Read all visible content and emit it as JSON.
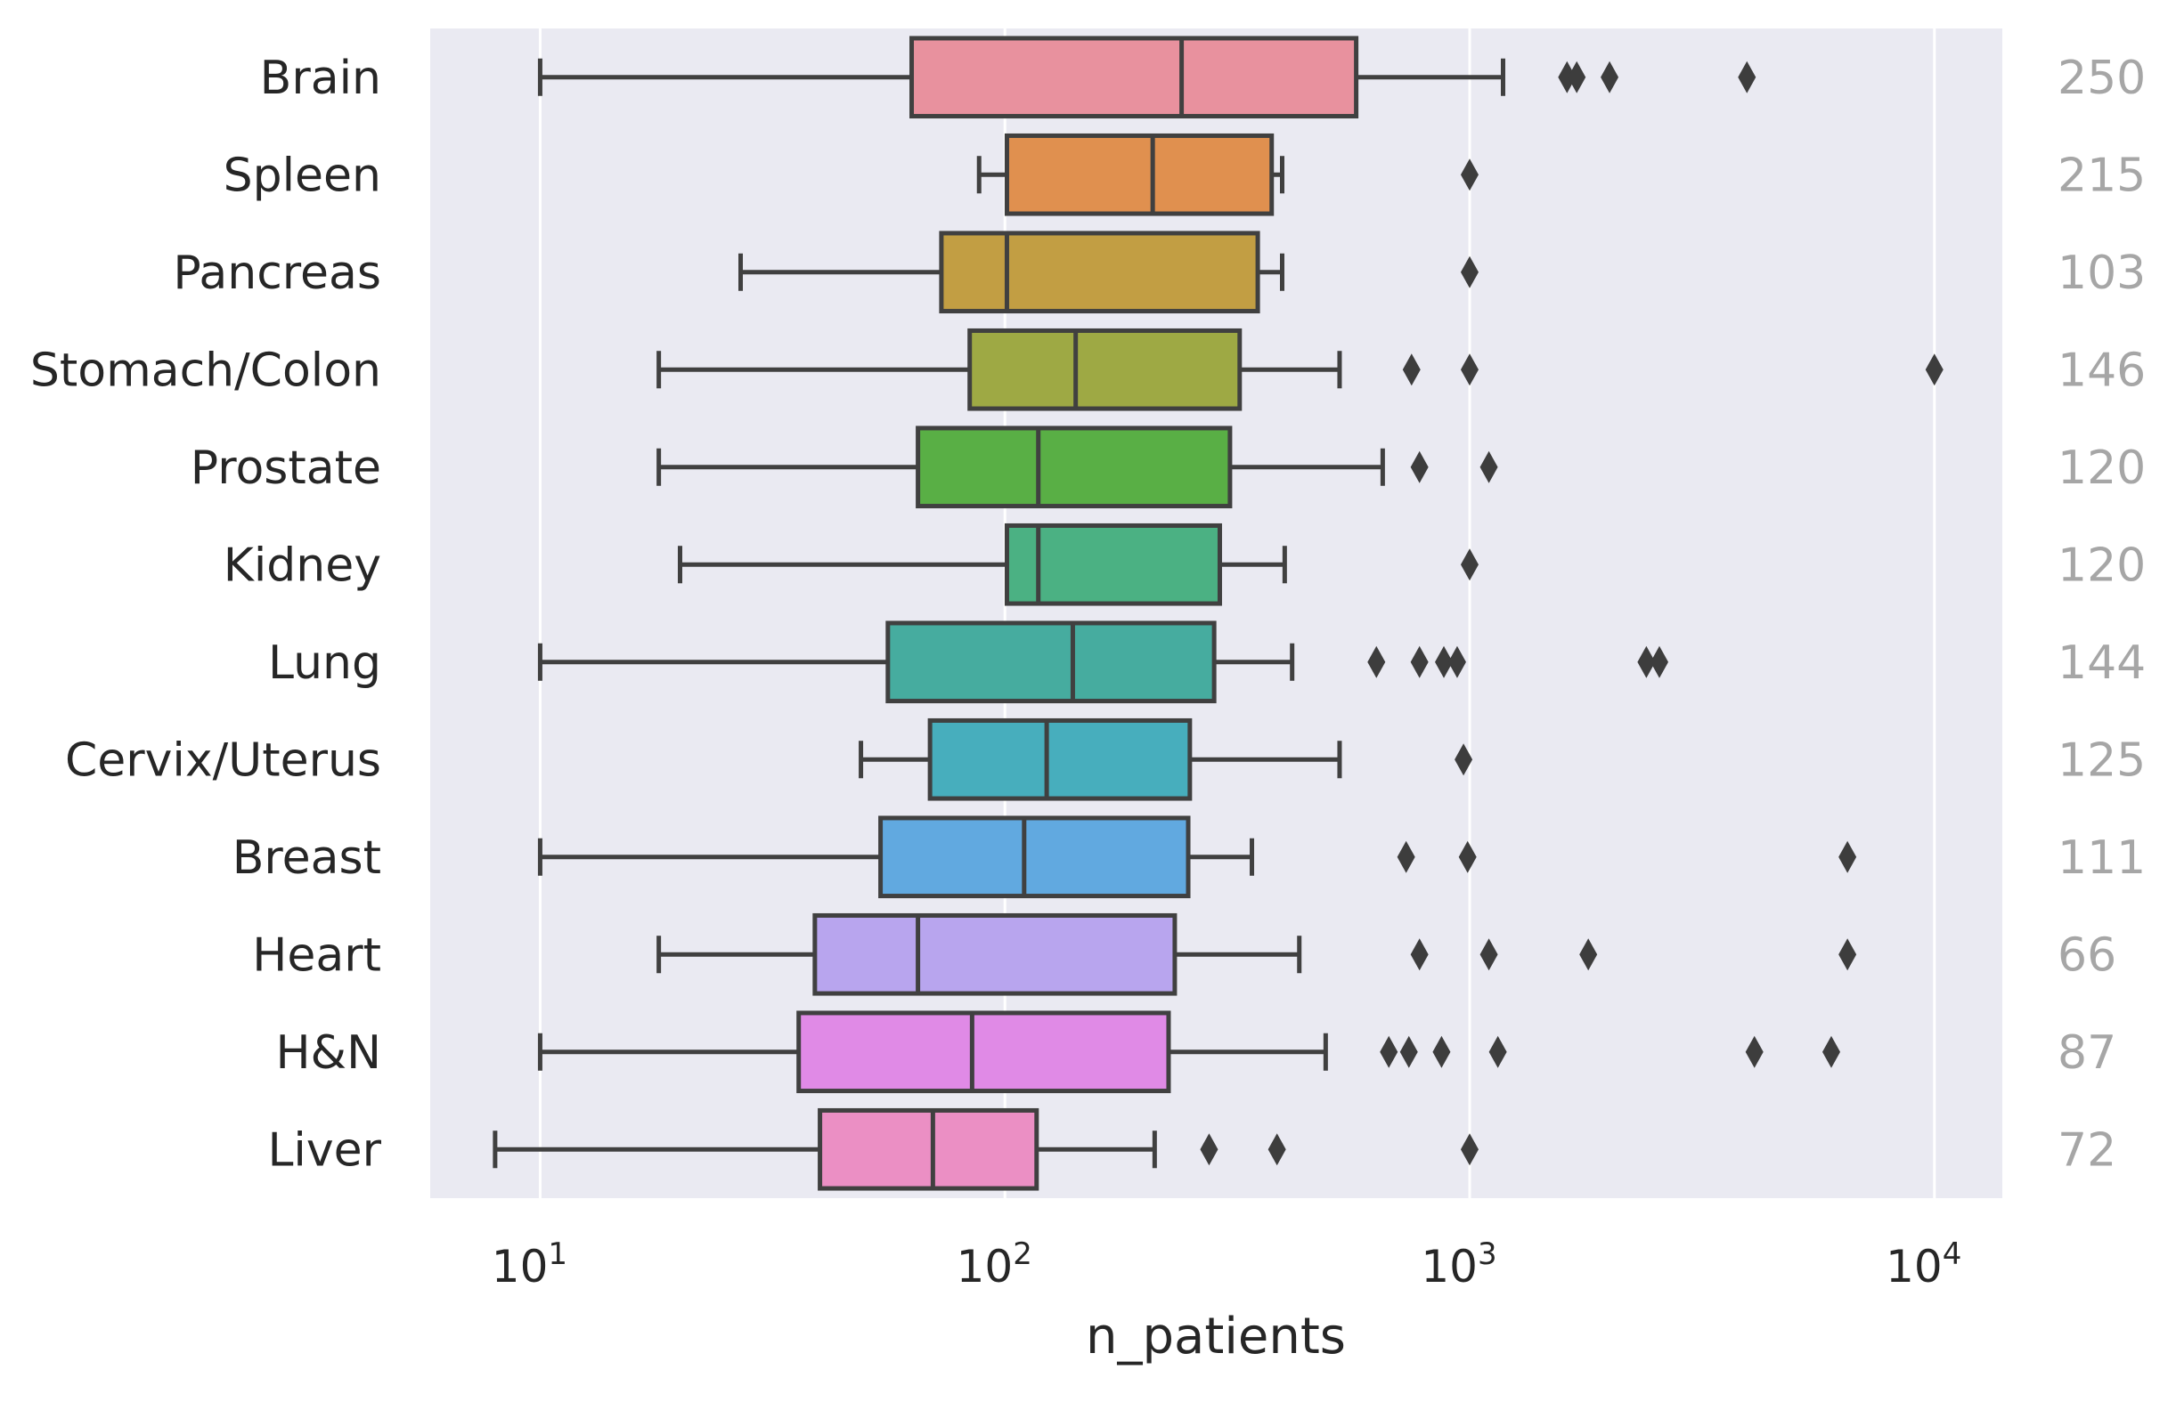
{
  "chart_data": {
    "type": "boxplot",
    "orientation": "horizontal",
    "xlabel": "n_patients",
    "xscale": "log",
    "xlim": [
      5.8,
      14000
    ],
    "xticks": [
      {
        "value": 10,
        "base": "10",
        "exp": "1"
      },
      {
        "value": 100,
        "base": "10",
        "exp": "2"
      },
      {
        "value": 1000,
        "base": "10",
        "exp": "3"
      },
      {
        "value": 10000,
        "base": "10",
        "exp": "4"
      }
    ],
    "grid": true,
    "background": "#eaeaf2",
    "count_color": "#a6a6a6",
    "categories": [
      {
        "label": "Brain",
        "count": "250",
        "color": "#e8919e",
        "whisker_low": 10,
        "q1": 63,
        "median": 240,
        "q3": 570,
        "whisker_high": 1180,
        "outliers": [
          1620,
          1700,
          2000,
          3950
        ]
      },
      {
        "label": "Spleen",
        "count": "215",
        "color": "#e0904f",
        "whisker_low": 88,
        "q1": 101,
        "median": 208,
        "q3": 375,
        "whisker_high": 395,
        "outliers": [
          1000
        ]
      },
      {
        "label": "Pancreas",
        "count": "103",
        "color": "#c29e43",
        "whisker_low": 27,
        "q1": 73,
        "median": 101,
        "q3": 350,
        "whisker_high": 395,
        "outliers": [
          1000
        ]
      },
      {
        "label": "Stomach/Colon",
        "count": "146",
        "color": "#9ea944",
        "whisker_low": 18,
        "q1": 84,
        "median": 142,
        "q3": 320,
        "whisker_high": 525,
        "outliers": [
          750,
          1000,
          10000
        ]
      },
      {
        "label": "Prostate",
        "count": "120",
        "color": "#59af45",
        "whisker_low": 18,
        "q1": 65,
        "median": 118,
        "q3": 305,
        "whisker_high": 650,
        "outliers": [
          780,
          1100
        ]
      },
      {
        "label": "Kidney",
        "count": "120",
        "color": "#4bb183",
        "whisker_low": 20,
        "q1": 101,
        "median": 118,
        "q3": 290,
        "whisker_high": 400,
        "outliers": [
          1000
        ]
      },
      {
        "label": "Lung",
        "count": "144",
        "color": "#46ac9f",
        "whisker_low": 10,
        "q1": 56,
        "median": 140,
        "q3": 282,
        "whisker_high": 415,
        "outliers": [
          630,
          780,
          880,
          940,
          2400,
          2560
        ]
      },
      {
        "label": "Cervix/Uterus",
        "count": "125",
        "color": "#47aebd",
        "whisker_low": 49,
        "q1": 69,
        "median": 123,
        "q3": 250,
        "whisker_high": 525,
        "outliers": [
          970
        ]
      },
      {
        "label": "Breast",
        "count": "111",
        "color": "#61a9e0",
        "whisker_low": 10,
        "q1": 54,
        "median": 110,
        "q3": 248,
        "whisker_high": 340,
        "outliers": [
          730,
          990,
          6500
        ]
      },
      {
        "label": "Heart",
        "count": "66",
        "color": "#b8a5ee",
        "whisker_low": 18,
        "q1": 39,
        "median": 65,
        "q3": 232,
        "whisker_high": 430,
        "outliers": [
          780,
          1100,
          1800,
          6500
        ]
      },
      {
        "label": "H&N",
        "count": "87",
        "color": "#e08ae6",
        "whisker_low": 10,
        "q1": 36,
        "median": 85,
        "q3": 225,
        "whisker_high": 490,
        "outliers": [
          670,
          740,
          870,
          1150,
          4100,
          6000
        ]
      },
      {
        "label": "Liver",
        "count": "72",
        "color": "#eb8fc4",
        "whisker_low": 8,
        "q1": 40,
        "median": 70,
        "q3": 117,
        "whisker_high": 210,
        "outliers": [
          275,
          385,
          1000
        ]
      }
    ]
  }
}
